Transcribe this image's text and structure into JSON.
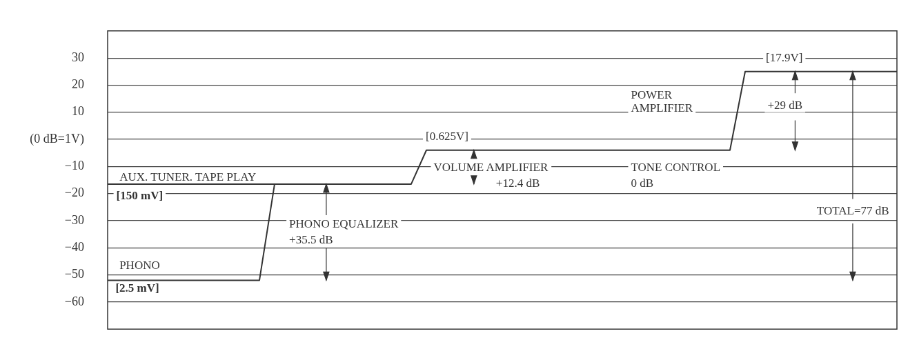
{
  "chart_data": {
    "type": "line",
    "categories": [
      null,
      null,
      null,
      null,
      null,
      null,
      null,
      null,
      null,
      null,
      null,
      null,
      null,
      null,
      null,
      null,
      null,
      null,
      null,
      null,
      null,
      null,
      null,
      null,
      null,
      null,
      null,
      null,
      null,
      null,
      null,
      null,
      null,
      null,
      null,
      null,
      null,
      null,
      null,
      null,
      null,
      null,
      null,
      null,
      null,
      null,
      null,
      null,
      null,
      null,
      null,
      null,
      null
    ],
    "series": [
      {
        "color": "#333333",
        "values": [
          -52,
          -52,
          -52,
          -52,
          -52,
          -52,
          -52,
          -52,
          -52,
          -52,
          -52,
          -16.5,
          null,
          null,
          null,
          null,
          null,
          null,
          null,
          null,
          null,
          null,
          null,
          null,
          null,
          null,
          null,
          null,
          null,
          null,
          null,
          null,
          null,
          null,
          null,
          null,
          null,
          null,
          null,
          null,
          null,
          null,
          null,
          null,
          null,
          null,
          null,
          null,
          null,
          null,
          null,
          null,
          null
        ]
      },
      {
        "color": "#333333",
        "values": [
          -16.5,
          -16.5,
          -16.5,
          -16.5,
          -16.5,
          -16.5,
          -16.5,
          -16.5,
          -16.5,
          -16.5,
          -16.5,
          -16.5,
          -16.5,
          -16.5,
          -16.5,
          -16.5,
          -16.5,
          -16.5,
          -16.5,
          -16.5,
          -16.5,
          -4,
          -4,
          -4,
          -4,
          -4,
          -4,
          -4,
          -4,
          -4,
          -4,
          -4,
          -4,
          -4,
          -4,
          -4,
          -4,
          -4,
          -4,
          -4,
          -4,
          -4,
          25,
          25,
          25,
          25,
          25,
          25,
          25,
          25,
          25,
          25,
          25
        ]
      }
    ],
    "ylim": [
      -70,
      40
    ],
    "yticks": [
      30,
      20,
      10,
      {
        "value": 0,
        "label": "(0 dB=1V)"
      },
      {
        "value": -10,
        "label": "−10"
      },
      {
        "value": -20,
        "label": "−20"
      },
      {
        "value": -30,
        "label": "−30"
      },
      {
        "value": -40,
        "label": "−40"
      },
      {
        "value": -50,
        "label": "−50"
      },
      {
        "value": -60,
        "label": "−60"
      }
    ],
    "grid": "y",
    "tick_labels": "y",
    "marker": "none",
    "line_style": "solid",
    "annotations": [
      "AUX. TUNER. TAPE PLAY",
      "[150 mV]",
      "PHONO",
      "[2.5 mV]",
      "PHONO EQUALIZER",
      "+35.5 dB",
      "[0.625V]",
      "VOLUME AMPLIFIER",
      "+12.4 dB",
      "TONE CONTROL",
      "0 dB",
      "[17.9V]",
      "POWER",
      "AMPLIFIER",
      "+29 dB",
      "TOTAL=77 dB"
    ]
  }
}
